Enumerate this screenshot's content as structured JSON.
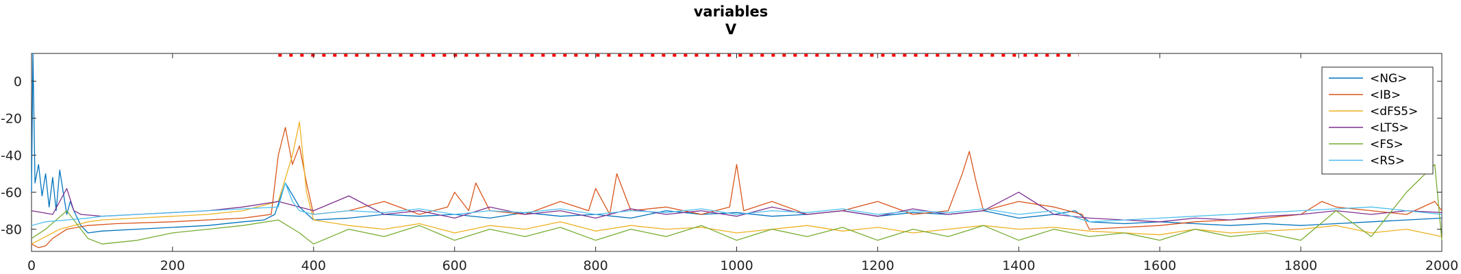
{
  "chart_data": {
    "type": "line",
    "title": "variables",
    "subtitle": "V",
    "xlabel": "",
    "ylabel": "",
    "xlim": [
      0,
      2000
    ],
    "ylim": [
      -92,
      15
    ],
    "xticks": [
      {
        "value": 0,
        "label": "0"
      },
      {
        "value": 200,
        "label": "200"
      },
      {
        "value": 400,
        "label": "400"
      },
      {
        "value": 600,
        "label": "600"
      },
      {
        "value": 800,
        "label": "800"
      },
      {
        "value": 1000,
        "label": "1000"
      },
      {
        "value": 1200,
        "label": "1200"
      },
      {
        "value": 1400,
        "label": "1400"
      },
      {
        "value": 1600,
        "label": "1600"
      },
      {
        "value": 1800,
        "label": "1800"
      },
      {
        "value": 2000,
        "label": "2000"
      }
    ],
    "yticks": [
      {
        "value": 0,
        "label": "0"
      },
      {
        "value": -20,
        "label": "-20"
      },
      {
        "value": -40,
        "label": "-40"
      },
      {
        "value": -60,
        "label": "-60"
      },
      {
        "value": -80,
        "label": "-80"
      }
    ],
    "grid": false,
    "legend_position": "top-right",
    "stimulus_marker": {
      "color": "#ff0000",
      "x_start": 350,
      "x_end": 1485,
      "y": 14
    },
    "series": [
      {
        "name": "<NG>",
        "color": "#0072bd",
        "x": [
          0,
          2,
          5,
          10,
          15,
          20,
          25,
          30,
          35,
          40,
          45,
          50,
          55,
          60,
          70,
          80,
          100,
          150,
          200,
          250,
          300,
          330,
          345,
          360,
          380,
          400,
          450,
          500,
          550,
          600,
          650,
          700,
          750,
          800,
          850,
          900,
          950,
          1000,
          1050,
          1100,
          1150,
          1200,
          1250,
          1300,
          1350,
          1400,
          1450,
          1480,
          1500,
          1550,
          1600,
          1650,
          1700,
          1750,
          1800,
          1850,
          1900,
          1950,
          2000
        ],
        "y": [
          -60,
          15,
          -55,
          -45,
          -62,
          -50,
          -68,
          -52,
          -70,
          -48,
          -60,
          -72,
          -65,
          -70,
          -78,
          -82,
          -81,
          -80,
          -79,
          -78,
          -76,
          -75,
          -72,
          -55,
          -68,
          -75,
          -74,
          -72,
          -73,
          -72,
          -74,
          -71,
          -73,
          -72,
          -74,
          -70,
          -72,
          -71,
          -73,
          -72,
          -70,
          -73,
          -71,
          -72,
          -70,
          -74,
          -72,
          -70,
          -76,
          -77,
          -76,
          -77,
          -78,
          -77,
          -78,
          -77,
          -76,
          -75,
          -74
        ]
      },
      {
        "name": "<IB>",
        "color": "#d95319",
        "x": [
          0,
          10,
          20,
          30,
          50,
          80,
          120,
          200,
          300,
          340,
          350,
          360,
          370,
          380,
          390,
          400,
          450,
          500,
          550,
          590,
          600,
          620,
          630,
          650,
          700,
          750,
          790,
          800,
          820,
          830,
          850,
          900,
          950,
          990,
          1000,
          1010,
          1050,
          1100,
          1150,
          1200,
          1250,
          1300,
          1320,
          1330,
          1340,
          1350,
          1400,
          1450,
          1490,
          1500,
          1550,
          1600,
          1650,
          1700,
          1750,
          1800,
          1830,
          1850,
          1900,
          1950,
          1990,
          2000
        ],
        "y": [
          -88,
          -90,
          -89,
          -85,
          -80,
          -78,
          -77,
          -76,
          -74,
          -72,
          -40,
          -25,
          -45,
          -35,
          -55,
          -72,
          -70,
          -65,
          -72,
          -68,
          -60,
          -70,
          -55,
          -70,
          -72,
          -65,
          -70,
          -58,
          -72,
          -50,
          -70,
          -68,
          -72,
          -68,
          -45,
          -70,
          -65,
          -72,
          -70,
          -65,
          -72,
          -70,
          -50,
          -38,
          -55,
          -70,
          -65,
          -68,
          -72,
          -80,
          -79,
          -78,
          -76,
          -75,
          -74,
          -72,
          -65,
          -68,
          -70,
          -72,
          -65,
          -70
        ]
      },
      {
        "name": "<dFS5>",
        "color": "#edb120",
        "x": [
          0,
          20,
          40,
          60,
          80,
          100,
          150,
          200,
          250,
          300,
          350,
          370,
          380,
          390,
          400,
          450,
          500,
          550,
          600,
          650,
          700,
          750,
          800,
          850,
          900,
          950,
          1000,
          1050,
          1100,
          1150,
          1200,
          1250,
          1300,
          1350,
          1400,
          1450,
          1500,
          1550,
          1600,
          1650,
          1700,
          1750,
          1800,
          1850,
          1900,
          1950,
          2000
        ],
        "y": [
          -88,
          -84,
          -80,
          -78,
          -76,
          -75,
          -74,
          -73,
          -72,
          -70,
          -65,
          -40,
          -22,
          -60,
          -75,
          -78,
          -80,
          -77,
          -82,
          -78,
          -80,
          -76,
          -81,
          -78,
          -80,
          -79,
          -82,
          -80,
          -78,
          -81,
          -79,
          -82,
          -80,
          -78,
          -80,
          -79,
          -81,
          -82,
          -83,
          -80,
          -82,
          -81,
          -80,
          -78,
          -82,
          -80,
          -84
        ]
      },
      {
        "name": "<LTS>",
        "color": "#7e2f8e",
        "x": [
          0,
          30,
          50,
          60,
          70,
          100,
          150,
          200,
          250,
          300,
          350,
          400,
          450,
          500,
          550,
          600,
          650,
          700,
          750,
          800,
          850,
          900,
          950,
          1000,
          1050,
          1100,
          1150,
          1200,
          1250,
          1300,
          1350,
          1400,
          1450,
          1500,
          1550,
          1600,
          1650,
          1700,
          1750,
          1800,
          1850,
          1900,
          1950,
          2000
        ],
        "y": [
          -70,
          -72,
          -58,
          -70,
          -72,
          -73,
          -72,
          -71,
          -70,
          -68,
          -65,
          -70,
          -62,
          -72,
          -70,
          -74,
          -68,
          -72,
          -70,
          -74,
          -69,
          -72,
          -70,
          -73,
          -68,
          -72,
          -70,
          -73,
          -69,
          -72,
          -70,
          -60,
          -72,
          -74,
          -75,
          -76,
          -74,
          -75,
          -73,
          -72,
          -70,
          -72,
          -70,
          -71
        ]
      },
      {
        "name": "<FS>",
        "color": "#77ac30",
        "x": [
          0,
          20,
          50,
          80,
          100,
          150,
          200,
          250,
          300,
          350,
          380,
          400,
          450,
          500,
          550,
          600,
          650,
          700,
          750,
          800,
          850,
          900,
          950,
          1000,
          1050,
          1100,
          1150,
          1200,
          1250,
          1300,
          1350,
          1400,
          1450,
          1500,
          1550,
          1600,
          1650,
          1700,
          1750,
          1800,
          1850,
          1900,
          1950,
          1990,
          2000
        ],
        "y": [
          -85,
          -80,
          -70,
          -85,
          -88,
          -86,
          -82,
          -80,
          -78,
          -75,
          -82,
          -88,
          -80,
          -84,
          -78,
          -86,
          -80,
          -84,
          -79,
          -86,
          -80,
          -84,
          -78,
          -86,
          -80,
          -84,
          -79,
          -86,
          -80,
          -84,
          -78,
          -86,
          -80,
          -84,
          -82,
          -86,
          -80,
          -84,
          -82,
          -86,
          -70,
          -84,
          -60,
          -45,
          -86
        ]
      },
      {
        "name": "<RS>",
        "color": "#4dbeee",
        "x": [
          0,
          20,
          50,
          80,
          100,
          150,
          200,
          250,
          300,
          350,
          360,
          370,
          380,
          400,
          450,
          500,
          550,
          600,
          650,
          700,
          750,
          800,
          850,
          900,
          950,
          1000,
          1050,
          1100,
          1150,
          1200,
          1250,
          1300,
          1350,
          1400,
          1450,
          1500,
          1550,
          1600,
          1650,
          1700,
          1750,
          1800,
          1850,
          1900,
          1950,
          2000
        ],
        "y": [
          -78,
          -76,
          -75,
          -74,
          -73,
          -72,
          -71,
          -70,
          -69,
          -68,
          -55,
          -65,
          -70,
          -72,
          -70,
          -71,
          -69,
          -72,
          -70,
          -71,
          -69,
          -72,
          -70,
          -71,
          -69,
          -72,
          -70,
          -71,
          -69,
          -72,
          -70,
          -71,
          -69,
          -72,
          -70,
          -76,
          -75,
          -74,
          -73,
          -72,
          -71,
          -70,
          -69,
          -68,
          -70,
          -72
        ]
      }
    ]
  }
}
